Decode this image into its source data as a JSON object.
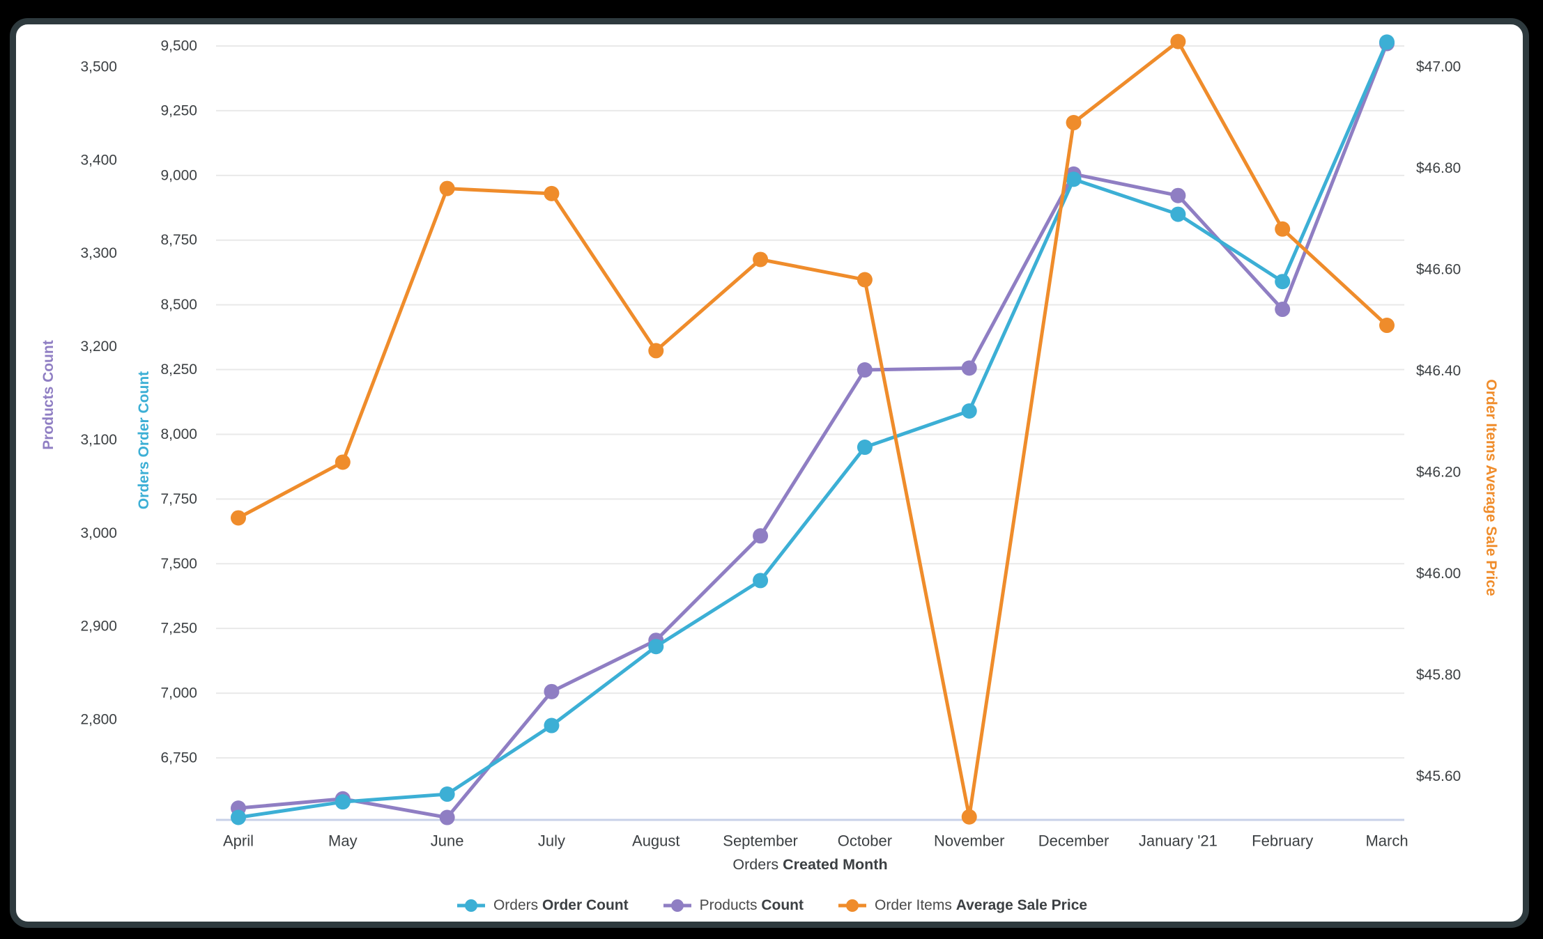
{
  "page": {
    "background_color": "#000000",
    "card_background": "#ffffff",
    "card_border_color": "#2e3a3e"
  },
  "chart_data": {
    "type": "line",
    "grid": true,
    "legend_position": "bottom",
    "categories": [
      "April",
      "May",
      "June",
      "July",
      "August",
      "September",
      "October",
      "November",
      "December",
      "January '21",
      "February",
      "March"
    ],
    "x_axis": {
      "title_prefix": "Orders ",
      "title_bold": "Created Month"
    },
    "axes": {
      "products": {
        "title": "Products Count",
        "side": "left-outer",
        "color": "#8f7ec3",
        "ticks": [
          "3,500",
          "3,400",
          "3,300",
          "3,200",
          "3,100",
          "3,000",
          "2,900",
          "2,800"
        ],
        "tick_values": [
          3500,
          3400,
          3300,
          3200,
          3100,
          3000,
          2900,
          2800
        ],
        "range": [
          2692,
          3522
        ]
      },
      "orders": {
        "title": "Orders Order Count",
        "side": "left-inner",
        "color": "#3cafd5",
        "ticks": [
          "9,500",
          "9,250",
          "9,000",
          "8,750",
          "8,500",
          "8,250",
          "8,000",
          "7,750",
          "7,500",
          "7,250",
          "7,000",
          "6,750"
        ],
        "tick_values": [
          9500,
          9250,
          9000,
          8750,
          8500,
          8250,
          8000,
          7750,
          7500,
          7250,
          7000,
          6750
        ],
        "range": [
          6510,
          9520
        ]
      },
      "price": {
        "title": "Order Items Average Sale Price",
        "side": "right",
        "color": "#ef8c2b",
        "ticks": [
          "$47.00",
          "$46.80",
          "$46.60",
          "$46.40",
          "$46.20",
          "$46.00",
          "$45.80",
          "$45.60"
        ],
        "tick_values": [
          47.0,
          46.8,
          46.6,
          46.4,
          46.2,
          46.0,
          45.8,
          45.6
        ],
        "range": [
          45.51,
          47.06
        ]
      }
    },
    "series": [
      {
        "name_prefix": "Orders ",
        "name_bold": "Order Count",
        "axis": "orders",
        "color": "#3cafd5",
        "values": [
          6520,
          6580,
          6610,
          6875,
          7180,
          7435,
          7950,
          8090,
          8985,
          8850,
          8590,
          9515
        ]
      },
      {
        "name_prefix": "Products ",
        "name_bold": "Count",
        "axis": "products",
        "color": "#8f7ec3",
        "values": [
          2705,
          2715,
          2695,
          2830,
          2885,
          2997,
          3175,
          3177,
          3385,
          3362,
          3240,
          3525
        ]
      },
      {
        "name_prefix": "Order Items ",
        "name_bold": "Average Sale Price",
        "axis": "price",
        "color": "#ef8c2b",
        "values": [
          46.11,
          46.22,
          46.76,
          46.75,
          46.44,
          46.62,
          46.58,
          45.52,
          46.89,
          47.05,
          46.68,
          46.49
        ]
      }
    ],
    "style": {
      "gridline_color": "#e9e9e9",
      "baseline_color": "#c8d1e8",
      "tick_text_color": "#3c4043"
    }
  }
}
